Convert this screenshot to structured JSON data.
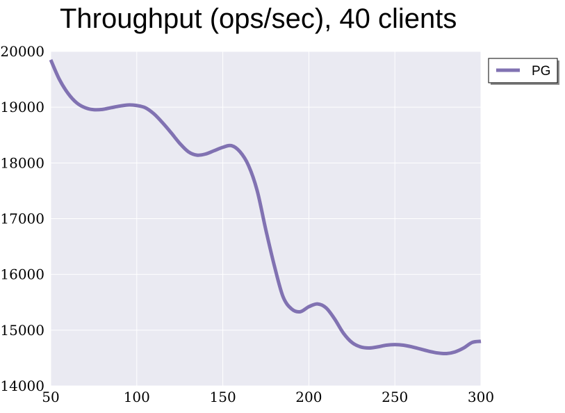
{
  "chart_data": {
    "type": "line",
    "title": "Throughput (ops/sec), 40 clients",
    "xlabel": "",
    "ylabel": "",
    "xlim": [
      50,
      300
    ],
    "ylim": [
      14000,
      20000
    ],
    "xticks": [
      50,
      100,
      150,
      200,
      250,
      300
    ],
    "yticks": [
      14000,
      15000,
      16000,
      17000,
      18000,
      19000,
      20000
    ],
    "grid": true,
    "legend_position": "outside-top-right",
    "colors": {
      "plot_background": "#eaeaf2",
      "grid": "#ffffff",
      "line": "#8172b2"
    },
    "series": [
      {
        "name": "PG",
        "x": [
          50,
          55,
          60,
          65,
          70,
          75,
          80,
          85,
          90,
          95,
          100,
          105,
          110,
          115,
          120,
          125,
          130,
          135,
          140,
          145,
          150,
          155,
          160,
          165,
          170,
          175,
          180,
          185,
          190,
          195,
          200,
          205,
          210,
          215,
          220,
          225,
          230,
          235,
          240,
          245,
          250,
          255,
          260,
          265,
          270,
          275,
          280,
          285,
          290,
          295,
          300
        ],
        "y": [
          19850,
          19500,
          19250,
          19080,
          18990,
          18955,
          18960,
          18990,
          19020,
          19040,
          19030,
          18990,
          18880,
          18720,
          18540,
          18350,
          18200,
          18140,
          18160,
          18220,
          18280,
          18310,
          18200,
          17950,
          17500,
          16800,
          16150,
          15600,
          15380,
          15330,
          15420,
          15470,
          15400,
          15200,
          14950,
          14780,
          14700,
          14680,
          14700,
          14730,
          14740,
          14730,
          14700,
          14660,
          14620,
          14590,
          14580,
          14610,
          14680,
          14780,
          14800
        ]
      }
    ]
  }
}
